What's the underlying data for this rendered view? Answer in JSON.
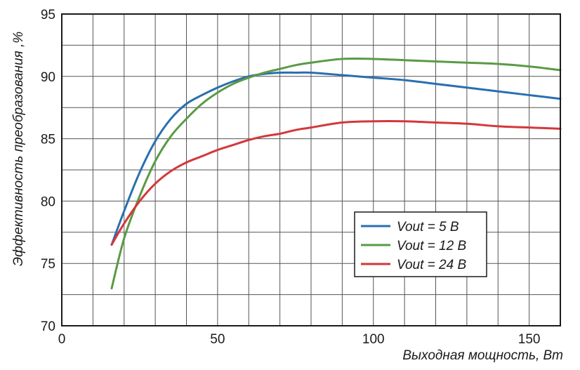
{
  "chart_data": {
    "type": "line",
    "xlabel": "Выходная мощность, Вт",
    "ylabel": "Эффективность преобразования ,%",
    "xlim": [
      0,
      160
    ],
    "ylim": [
      70,
      95
    ],
    "xticks": [
      0,
      50,
      100,
      150
    ],
    "yticks": [
      70,
      75,
      80,
      85,
      90,
      95
    ],
    "x_grid_step": 10,
    "y_grid_step": 2.5,
    "grid": true,
    "legend_position": "bottom-right",
    "series": [
      {
        "name": "Vout = 5 В",
        "color": "#2a6fb0",
        "x": [
          16,
          20,
          25,
          30,
          35,
          40,
          45,
          50,
          55,
          60,
          65,
          70,
          75,
          80,
          90,
          100,
          110,
          120,
          130,
          140,
          150,
          160
        ],
        "y": [
          76.5,
          79.2,
          82.3,
          84.8,
          86.6,
          87.8,
          88.5,
          89.1,
          89.6,
          90.0,
          90.2,
          90.3,
          90.3,
          90.3,
          90.1,
          89.9,
          89.7,
          89.4,
          89.1,
          88.8,
          88.5,
          88.2
        ]
      },
      {
        "name": "Vout = 12 В",
        "color": "#5a9a45",
        "x": [
          16,
          20,
          25,
          30,
          35,
          40,
          45,
          50,
          55,
          60,
          65,
          70,
          75,
          80,
          90,
          100,
          110,
          120,
          130,
          140,
          150,
          160
        ],
        "y": [
          73.0,
          77.0,
          80.4,
          83.2,
          85.2,
          86.6,
          87.8,
          88.7,
          89.4,
          89.9,
          90.3,
          90.6,
          90.9,
          91.1,
          91.4,
          91.4,
          91.3,
          91.2,
          91.1,
          91.0,
          90.8,
          90.5
        ]
      },
      {
        "name": "Vout = 24 В",
        "color": "#d4373b",
        "x": [
          16,
          20,
          25,
          30,
          35,
          40,
          45,
          50,
          55,
          60,
          65,
          70,
          75,
          80,
          90,
          100,
          110,
          120,
          130,
          140,
          150,
          160
        ],
        "y": [
          76.5,
          78.2,
          80.0,
          81.4,
          82.4,
          83.1,
          83.6,
          84.1,
          84.5,
          84.9,
          85.2,
          85.4,
          85.7,
          85.9,
          86.3,
          86.4,
          86.4,
          86.3,
          86.2,
          86.0,
          85.9,
          85.8
        ]
      }
    ]
  }
}
